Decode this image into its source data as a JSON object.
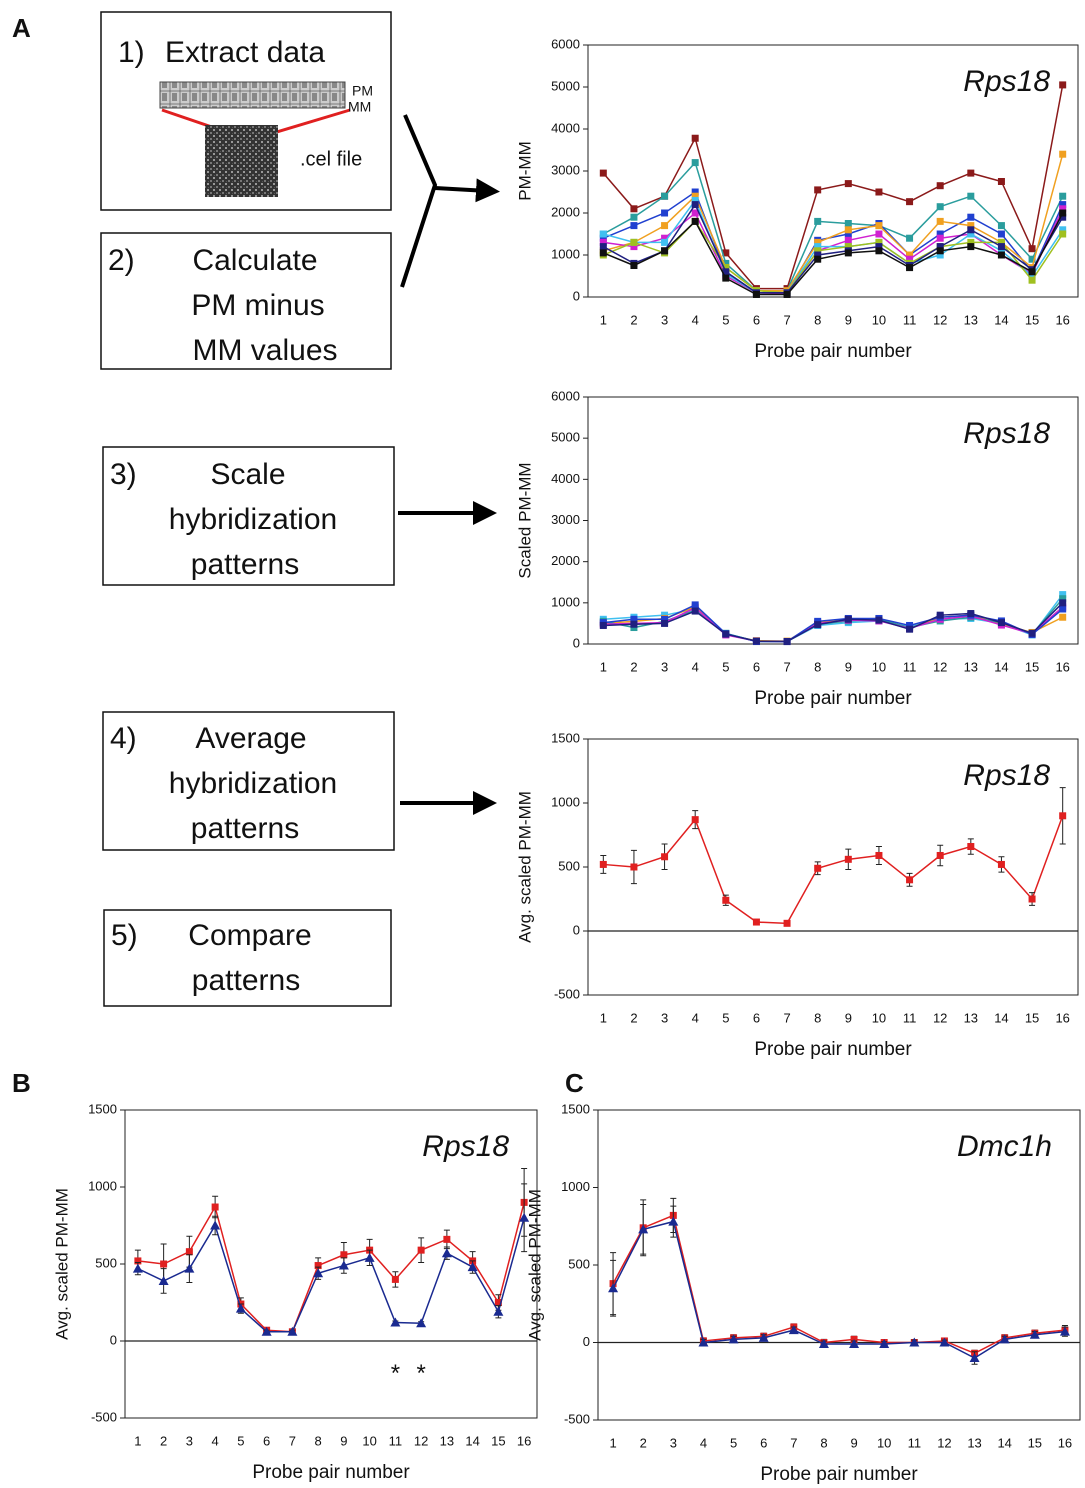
{
  "panel_labels": [
    "A",
    "B",
    "C"
  ],
  "steps": [
    {
      "number": "1)",
      "lines": [
        "Extract data"
      ]
    },
    {
      "number": "2)",
      "lines": [
        "Calculate",
        "PM minus",
        "MM values"
      ]
    },
    {
      "number": "3)",
      "lines": [
        "Scale",
        "hybridization",
        "patterns"
      ]
    },
    {
      "number": "4)",
      "lines": [
        "Average",
        "hybridization",
        "patterns"
      ]
    },
    {
      "number": "5)",
      "lines": [
        "Compare",
        "patterns"
      ]
    }
  ],
  "cel_labels": {
    "pm": "PM",
    "mm": "MM",
    "file": ".cel file"
  },
  "chart_data": [
    {
      "type": "line",
      "title": "Rps18",
      "xlabel": "Probe pair number",
      "ylabel": "PM-MM",
      "categories": [
        "1",
        "2",
        "3",
        "4",
        "5",
        "6",
        "7",
        "8",
        "9",
        "10",
        "11",
        "12",
        "13",
        "14",
        "15",
        "16"
      ],
      "ylim": [
        0,
        6000
      ],
      "yticks": [
        0,
        1000,
        2000,
        3000,
        4000,
        5000,
        6000
      ],
      "series": [
        {
          "color": "#8b1a1a",
          "values": [
            2950,
            2100,
            2400,
            3780,
            1050,
            200,
            200,
            2550,
            2700,
            2500,
            2270,
            2650,
            2950,
            2750,
            1150,
            5050
          ]
        },
        {
          "color": "#2a9d9d",
          "values": [
            1500,
            1900,
            2400,
            3200,
            800,
            150,
            150,
            1800,
            1750,
            1700,
            1400,
            2150,
            2400,
            1700,
            900,
            2400
          ]
        },
        {
          "color": "#2040d0",
          "values": [
            1400,
            1700,
            2000,
            2500,
            600,
            100,
            100,
            1350,
            1500,
            1750,
            1000,
            1500,
            1900,
            1500,
            600,
            2200
          ]
        },
        {
          "color": "#f0a020",
          "values": [
            1100,
            1300,
            1700,
            2400,
            700,
            150,
            150,
            1300,
            1600,
            1700,
            1000,
            1800,
            1700,
            1300,
            700,
            3400
          ]
        },
        {
          "color": "#d020d0",
          "values": [
            1300,
            1200,
            1400,
            2000,
            500,
            100,
            80,
            1100,
            1350,
            1500,
            900,
            1400,
            1500,
            1000,
            550,
            2100
          ]
        },
        {
          "color": "#40c0f0",
          "values": [
            1500,
            1300,
            1300,
            2300,
            550,
            100,
            100,
            1200,
            1200,
            1300,
            800,
            1000,
            1500,
            1100,
            500,
            1600
          ]
        },
        {
          "color": "#a0c020",
          "values": [
            1000,
            1300,
            1050,
            1800,
            700,
            150,
            100,
            1100,
            1200,
            1300,
            800,
            1200,
            1300,
            1300,
            400,
            1500
          ]
        },
        {
          "color": "#202080",
          "values": [
            1200,
            800,
            1100,
            2200,
            600,
            100,
            100,
            1000,
            1100,
            1200,
            750,
            1200,
            1600,
            1200,
            650,
            1900
          ]
        },
        {
          "color": "#101010",
          "values": [
            1050,
            750,
            1100,
            1800,
            450,
            60,
            60,
            900,
            1050,
            1100,
            700,
            1100,
            1200,
            1000,
            600,
            2000
          ]
        }
      ]
    },
    {
      "type": "line",
      "title": "Rps18",
      "xlabel": "Probe pair number",
      "ylabel": "Scaled PM-MM",
      "categories": [
        "1",
        "2",
        "3",
        "4",
        "5",
        "6",
        "7",
        "8",
        "9",
        "10",
        "11",
        "12",
        "13",
        "14",
        "15",
        "16"
      ],
      "ylim": [
        0,
        6000
      ],
      "yticks": [
        0,
        1000,
        2000,
        3000,
        4000,
        5000,
        6000
      ],
      "series": [
        {
          "color": "#40c0f0",
          "values": [
            600,
            650,
            700,
            850,
            250,
            70,
            60,
            450,
            520,
            560,
            420,
            600,
            620,
            500,
            220,
            1200
          ]
        },
        {
          "color": "#f0a020",
          "values": [
            500,
            550,
            620,
            900,
            230,
            80,
            70,
            520,
            600,
            620,
            380,
            650,
            700,
            480,
            280,
            650
          ]
        },
        {
          "color": "#2a9d9d",
          "values": [
            550,
            400,
            550,
            820,
            260,
            60,
            60,
            480,
            560,
            600,
            400,
            560,
            650,
            520,
            240,
            1100
          ]
        },
        {
          "color": "#d020d0",
          "values": [
            480,
            500,
            520,
            880,
            220,
            70,
            60,
            500,
            580,
            560,
            380,
            600,
            680,
            460,
            250,
            900
          ]
        },
        {
          "color": "#2040d0",
          "values": [
            520,
            600,
            600,
            950,
            250,
            60,
            60,
            550,
            620,
            620,
            450,
            650,
            700,
            560,
            230,
            850
          ]
        },
        {
          "color": "#202080",
          "values": [
            450,
            480,
            500,
            800,
            240,
            70,
            60,
            470,
            600,
            580,
            360,
            700,
            740,
            520,
            260,
            1000
          ]
        }
      ]
    },
    {
      "type": "line",
      "title": "Rps18",
      "xlabel": "Probe pair number",
      "ylabel": "Avg. scaled PM-MM",
      "categories": [
        "1",
        "2",
        "3",
        "4",
        "5",
        "6",
        "7",
        "8",
        "9",
        "10",
        "11",
        "12",
        "13",
        "14",
        "15",
        "16"
      ],
      "ylim": [
        -500,
        1500
      ],
      "yticks": [
        -500,
        0,
        500,
        1000,
        1500
      ],
      "series": [
        {
          "color": "#e02020",
          "marker": "square",
          "values": [
            520,
            500,
            580,
            870,
            240,
            70,
            60,
            490,
            560,
            590,
            400,
            590,
            660,
            520,
            250,
            900
          ],
          "errors": [
            70,
            130,
            100,
            70,
            40,
            10,
            10,
            50,
            80,
            70,
            50,
            80,
            60,
            60,
            50,
            220
          ]
        }
      ]
    },
    {
      "type": "line",
      "title": "Rps18",
      "xlabel": "Probe pair number",
      "ylabel": "Avg. scaled PM-MM",
      "categories": [
        "1",
        "2",
        "3",
        "4",
        "5",
        "6",
        "7",
        "8",
        "9",
        "10",
        "11",
        "12",
        "13",
        "14",
        "15",
        "16"
      ],
      "ylim": [
        -500,
        1500
      ],
      "yticks": [
        -500,
        0,
        500,
        1000,
        1500
      ],
      "annotations": [
        {
          "text": "*",
          "category": "11"
        },
        {
          "text": "*",
          "category": "12"
        }
      ],
      "series": [
        {
          "color": "#e02020",
          "marker": "square",
          "values": [
            520,
            500,
            580,
            870,
            240,
            70,
            60,
            490,
            560,
            590,
            400,
            590,
            660,
            520,
            250,
            900
          ],
          "errors": [
            70,
            130,
            100,
            70,
            40,
            10,
            10,
            50,
            80,
            70,
            50,
            80,
            60,
            60,
            50,
            220
          ]
        },
        {
          "color": "#1a2a90",
          "marker": "triangle",
          "values": [
            470,
            390,
            470,
            750,
            210,
            60,
            60,
            440,
            490,
            540,
            120,
            115,
            570,
            480,
            190,
            800
          ],
          "errors": [
            40,
            80,
            90,
            60,
            30,
            10,
            10,
            40,
            50,
            50,
            10,
            10,
            40,
            40,
            40,
            220
          ]
        }
      ]
    },
    {
      "type": "line",
      "title": "Dmc1h",
      "xlabel": "Probe pair number",
      "ylabel": "Avg. scaled PM-MM",
      "categories": [
        "1",
        "2",
        "3",
        "4",
        "5",
        "6",
        "7",
        "8",
        "9",
        "10",
        "11",
        "12",
        "13",
        "14",
        "15",
        "16"
      ],
      "ylim": [
        -500,
        1500
      ],
      "yticks": [
        -500,
        0,
        500,
        1000,
        1500
      ],
      "series": [
        {
          "color": "#e02020",
          "marker": "square",
          "values": [
            380,
            740,
            820,
            10,
            30,
            40,
            100,
            0,
            20,
            0,
            0,
            10,
            -70,
            30,
            60,
            80
          ],
          "errors": [
            200,
            180,
            110,
            20,
            20,
            20,
            20,
            20,
            20,
            15,
            15,
            15,
            20,
            20,
            20,
            30
          ]
        },
        {
          "color": "#1a2a90",
          "marker": "triangle",
          "values": [
            350,
            730,
            780,
            0,
            20,
            30,
            80,
            -10,
            -10,
            -10,
            0,
            0,
            -100,
            20,
            50,
            70
          ],
          "errors": [
            180,
            160,
            100,
            20,
            20,
            20,
            20,
            20,
            20,
            15,
            15,
            15,
            40,
            20,
            20,
            30
          ]
        }
      ]
    }
  ]
}
